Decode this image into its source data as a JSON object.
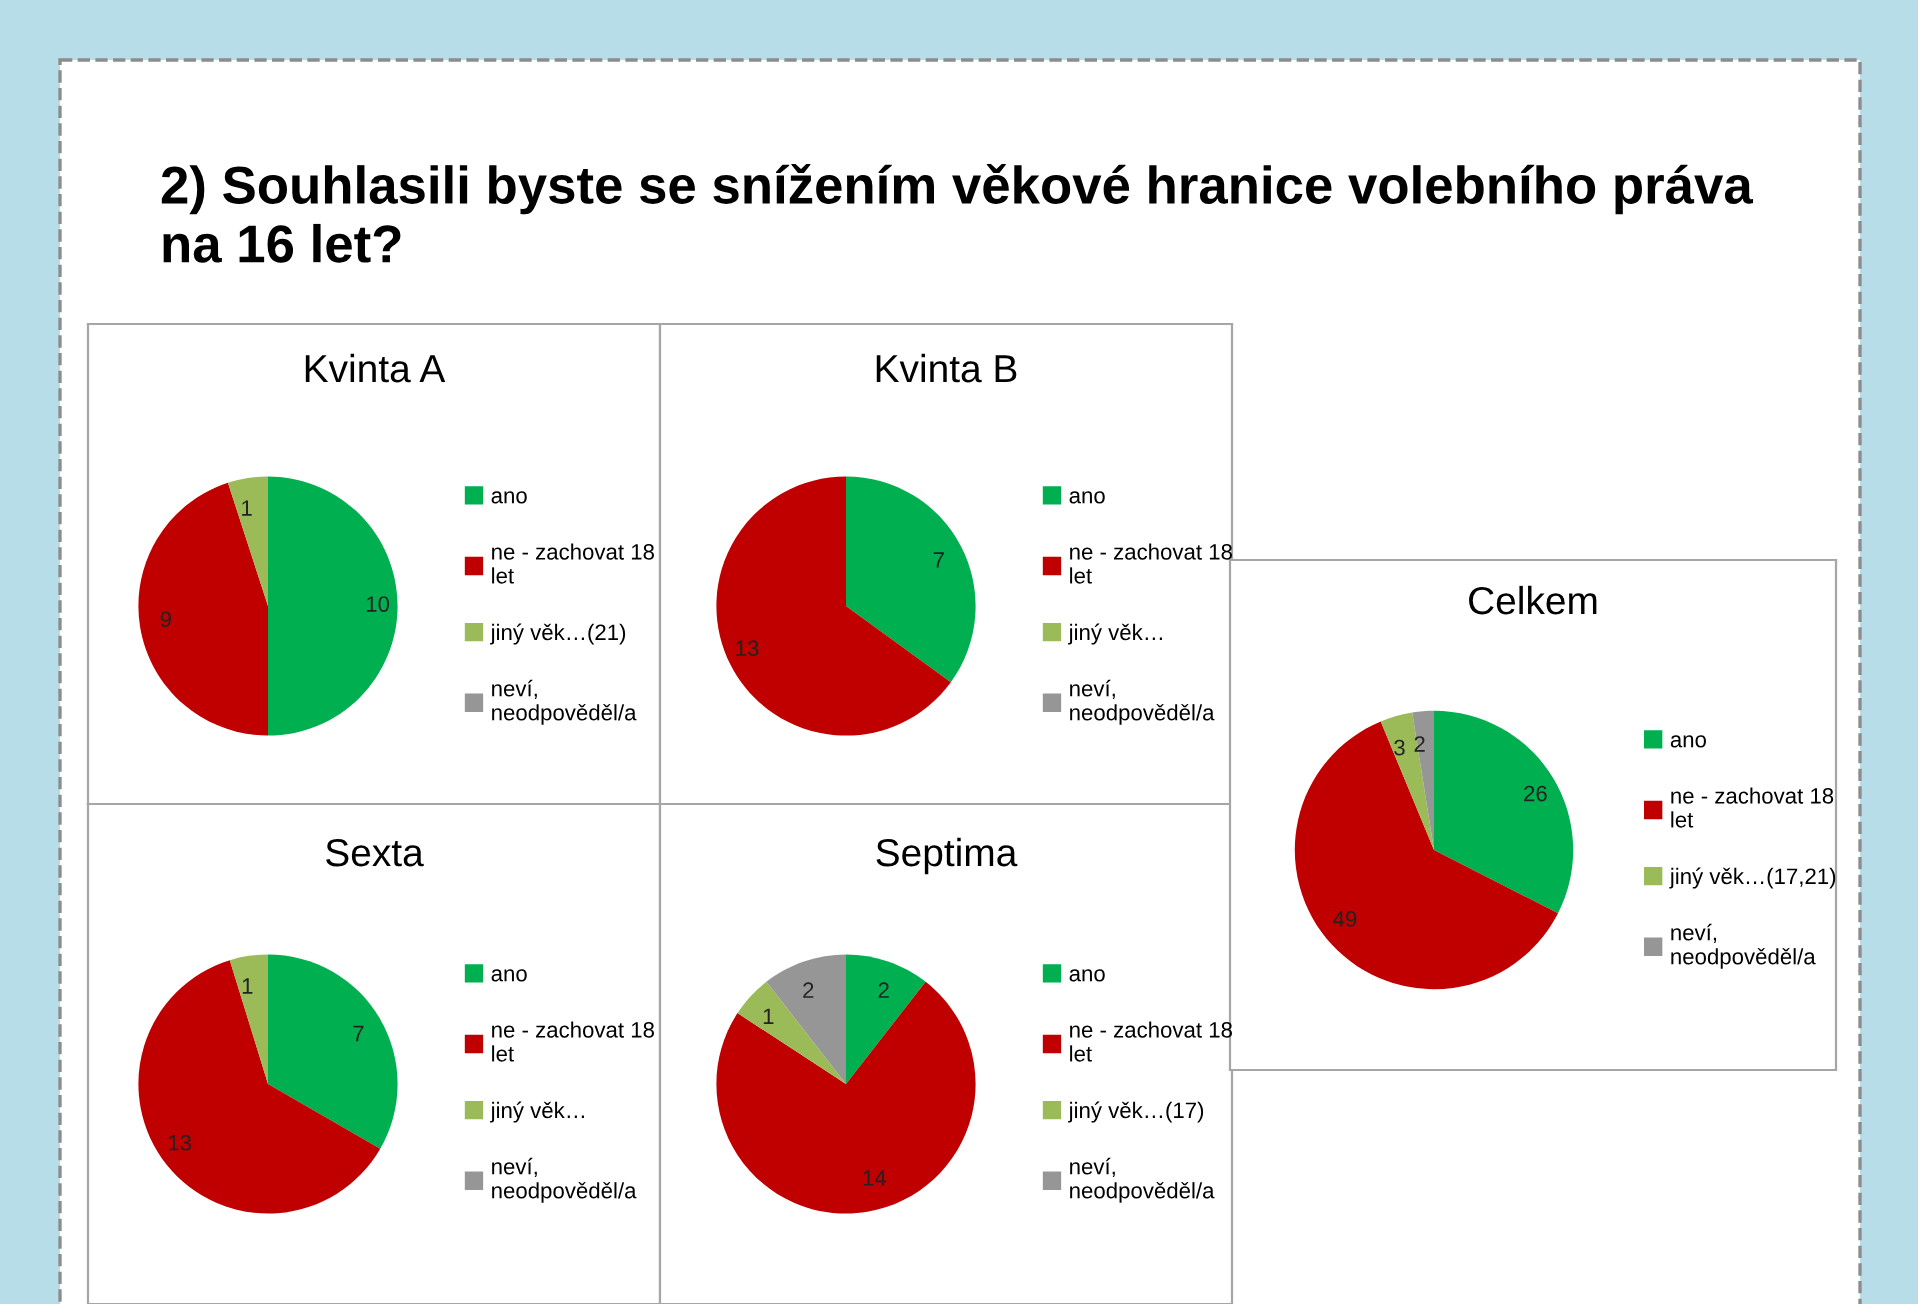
{
  "chart_data": [
    {
      "type": "other",
      "title": "2) Souhlasili byste se snížením věkové hranice volebního práva na 16 let?"
    },
    {
      "type": "pie",
      "title": "Kvinta A",
      "categories": [
        "ano",
        "ne - zachovat 18 let",
        "jiný věk…(21)",
        "neví, neodpověděl/a"
      ],
      "values": [
        10,
        9,
        1,
        0
      ],
      "colors": [
        "#00b050",
        "#c00000",
        "#9bbb59",
        "#969696"
      ],
      "data_labels": true,
      "legend": "right"
    },
    {
      "type": "pie",
      "title": "Kvinta B",
      "categories": [
        "ano",
        "ne - zachovat 18 let",
        "jiný věk…",
        "neví, neodpověděl/a"
      ],
      "values": [
        7,
        13,
        0,
        0
      ],
      "colors": [
        "#00b050",
        "#c00000",
        "#9bbb59",
        "#969696"
      ],
      "data_labels": true,
      "legend": "right"
    },
    {
      "type": "pie",
      "title": "Sexta",
      "categories": [
        "ano",
        "ne - zachovat 18 let",
        "jiný věk…",
        "neví, neodpověděl/a"
      ],
      "values": [
        7,
        13,
        1,
        0
      ],
      "colors": [
        "#00b050",
        "#c00000",
        "#9bbb59",
        "#969696"
      ],
      "data_labels": true,
      "legend": "right"
    },
    {
      "type": "pie",
      "title": "Septima",
      "categories": [
        "ano",
        "ne - zachovat 18 let",
        "jiný věk…(17)",
        "neví, neodpověděl/a"
      ],
      "values": [
        2,
        14,
        1,
        2
      ],
      "colors": [
        "#00b050",
        "#c00000",
        "#9bbb59",
        "#969696"
      ],
      "data_labels": true,
      "legend": "right"
    },
    {
      "type": "pie",
      "title": "Celkem",
      "categories": [
        "ano",
        "ne - zachovat 18 let",
        "jiný věk…(17,21)",
        "neví, neodpověděl/a"
      ],
      "values": [
        26,
        49,
        3,
        2
      ],
      "colors": [
        "#00b050",
        "#c00000",
        "#9bbb59",
        "#969696"
      ],
      "data_labels": true,
      "legend": "right"
    }
  ]
}
